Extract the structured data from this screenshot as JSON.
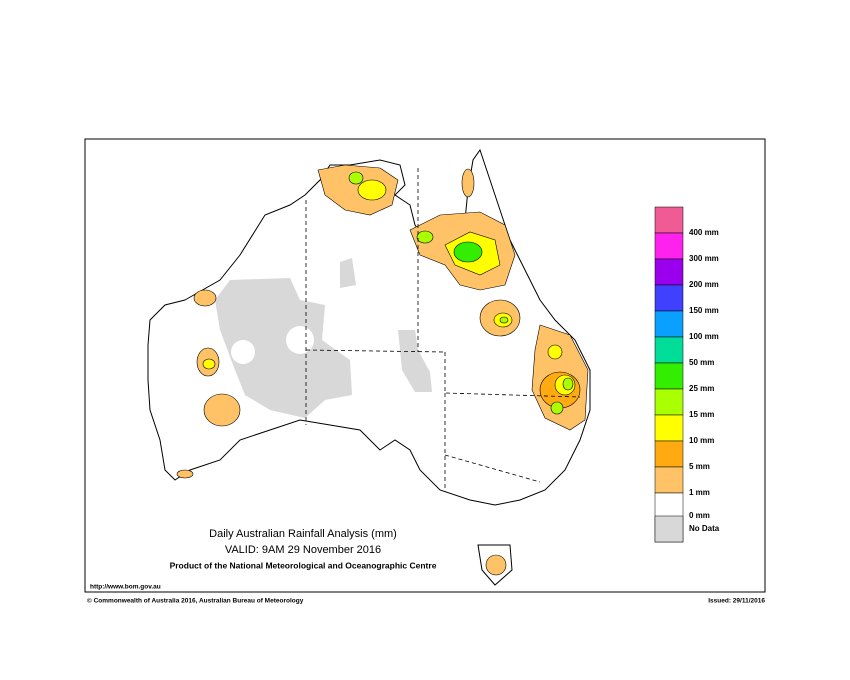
{
  "title": "Daily Australian Rainfall Analysis (mm)",
  "valid": "VALID: 9AM 29 November 2016",
  "producer": "Product of the National Meteorological and Oceanographic Centre",
  "url": "http://www.bom.gov.au",
  "copyright": "© Commonwealth of Australia 2016, Australian Bureau of Meteorology",
  "issued": "Issued: 29/11/2016",
  "legend": {
    "colors": [
      "#f05a95",
      "#ff22ee",
      "#9a00ee",
      "#4040ff",
      "#0aa0ff",
      "#00dd99",
      "#33ee00",
      "#aaff00",
      "#ffff00",
      "#ffaa11",
      "#ffc266",
      "#ffffff",
      "#ffffff",
      "#d8d8d8"
    ],
    "labels": [
      "400 mm",
      "300 mm",
      "200 mm",
      "150 mm",
      "100 mm",
      "50 mm",
      "25 mm",
      "15 mm",
      "10 mm",
      "5 mm",
      "1 mm",
      "0 mm",
      "No Data"
    ]
  }
}
